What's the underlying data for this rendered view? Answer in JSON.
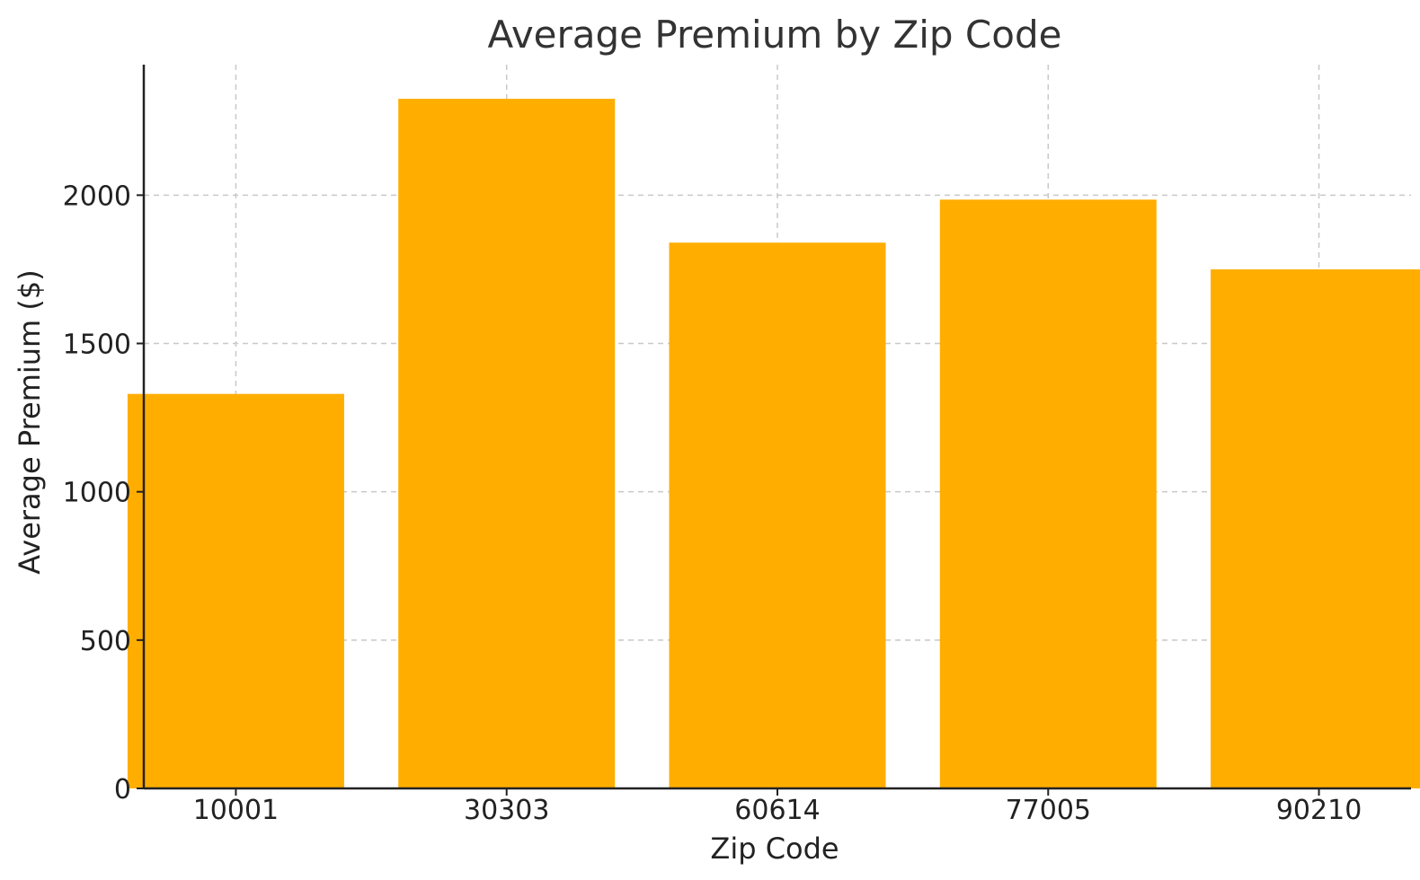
{
  "chart_data": {
    "type": "bar",
    "title": "Average Premium by Zip Code",
    "xlabel": "Zip Code",
    "ylabel": "Average Premium ($)",
    "categories": [
      "10001",
      "30303",
      "60614",
      "77005",
      "90210"
    ],
    "values": [
      1330,
      2325,
      1840,
      1985,
      1750
    ],
    "ylim": [
      0,
      2440
    ],
    "yticks": [
      0,
      500,
      1000,
      1500,
      2000
    ],
    "grid": true,
    "bar_color": "#FFAE00"
  }
}
